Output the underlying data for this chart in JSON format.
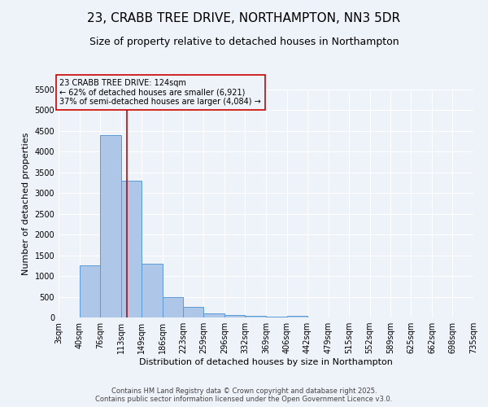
{
  "title1": "23, CRABB TREE DRIVE, NORTHAMPTON, NN3 5DR",
  "title2": "Size of property relative to detached houses in Northampton",
  "xlabel": "Distribution of detached houses by size in Northampton",
  "ylabel": "Number of detached properties",
  "bin_labels": [
    "3sqm",
    "40sqm",
    "76sqm",
    "113sqm",
    "149sqm",
    "186sqm",
    "223sqm",
    "259sqm",
    "296sqm",
    "332sqm",
    "369sqm",
    "406sqm",
    "442sqm",
    "479sqm",
    "515sqm",
    "552sqm",
    "589sqm",
    "625sqm",
    "662sqm",
    "698sqm",
    "735sqm"
  ],
  "bin_edges": [
    3,
    40,
    76,
    113,
    149,
    186,
    223,
    259,
    296,
    332,
    369,
    406,
    442,
    479,
    515,
    552,
    589,
    625,
    662,
    698,
    735
  ],
  "bar_heights": [
    0,
    1250,
    4400,
    3300,
    1300,
    500,
    250,
    100,
    60,
    30,
    20,
    30,
    0,
    0,
    0,
    0,
    0,
    0,
    0,
    0
  ],
  "bar_color": "#aec6e8",
  "bar_edgecolor": "#5b9bd5",
  "property_size": 124,
  "vline_color": "#cc0000",
  "annotation_line1": "23 CRABB TREE DRIVE: 124sqm",
  "annotation_line2": "← 62% of detached houses are smaller (6,921)",
  "annotation_line3": "37% of semi-detached houses are larger (4,084) →",
  "annotation_box_edgecolor": "#cc0000",
  "ylim": [
    0,
    5500
  ],
  "yticks": [
    0,
    500,
    1000,
    1500,
    2000,
    2500,
    3000,
    3500,
    4000,
    4500,
    5000,
    5500
  ],
  "footer1": "Contains HM Land Registry data © Crown copyright and database right 2025.",
  "footer2": "Contains public sector information licensed under the Open Government Licence v3.0.",
  "bg_color": "#eef2f9",
  "grid_color": "#ffffff",
  "title1_fontsize": 11,
  "title2_fontsize": 9,
  "xlabel_fontsize": 8,
  "ylabel_fontsize": 8,
  "tick_fontsize": 7,
  "annotation_fontsize": 7,
  "footer_fontsize": 6
}
